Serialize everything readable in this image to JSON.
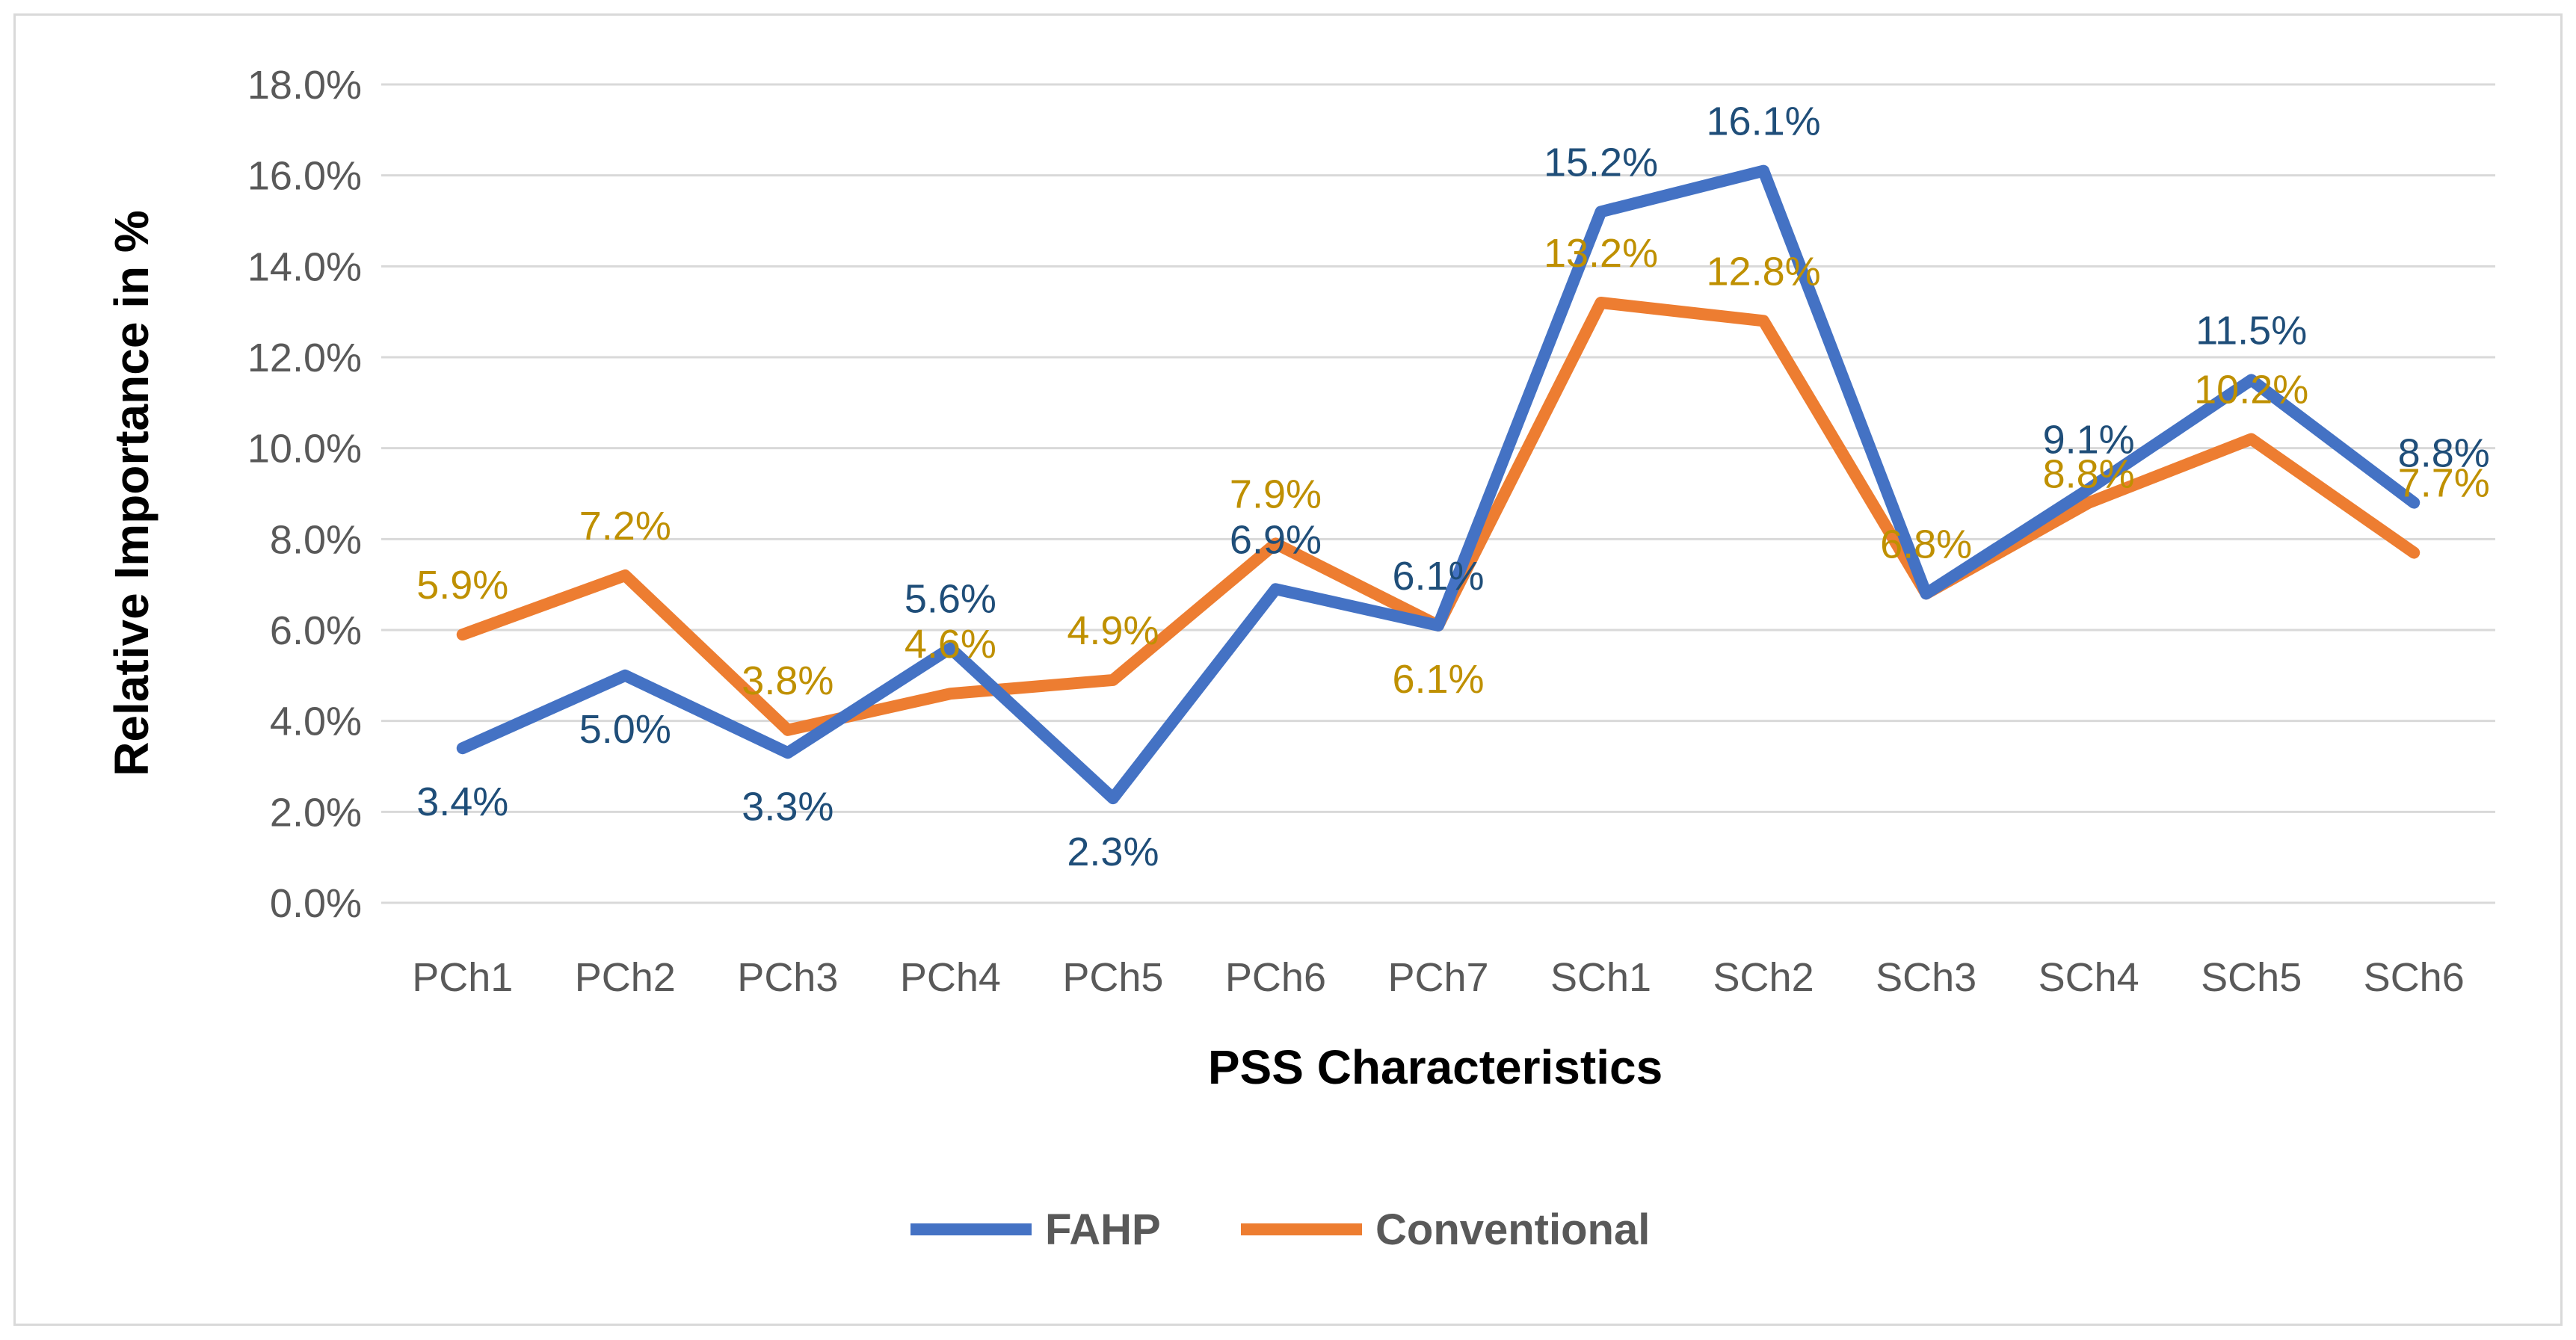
{
  "chart_data": {
    "type": "line",
    "categories": [
      "PCh1",
      "PCh2",
      "PCh3",
      "PCh4",
      "PCh5",
      "PCh6",
      "PCh7",
      "SCh1",
      "SCh2",
      "SCh3",
      "SCh4",
      "SCh5",
      "SCh6"
    ],
    "series": [
      {
        "name": "FAHP",
        "color": "#4472c4",
        "label_color": "#1f4e79",
        "values": [
          3.4,
          5.0,
          3.3,
          5.6,
          2.3,
          6.9,
          6.1,
          15.2,
          16.1,
          6.8,
          9.1,
          11.5,
          8.8
        ],
        "labels": [
          "3.4%",
          "5.0%",
          "3.3%",
          "5.6%",
          "2.3%",
          "6.9%",
          "6.1%",
          "15.2%",
          "16.1%",
          "",
          "9.1%",
          "11.5%",
          "8.8%"
        ]
      },
      {
        "name": "Conventional",
        "color": "#ed7d31",
        "label_color": "#bf9000",
        "values": [
          5.9,
          7.2,
          3.8,
          4.6,
          4.9,
          7.9,
          6.1,
          13.2,
          12.8,
          6.8,
          8.8,
          10.2,
          7.7
        ],
        "labels": [
          "5.9%",
          "7.2%",
          "3.8%",
          "4.6%",
          "4.9%",
          "7.9%",
          "6.1%",
          "13.2%",
          "12.8%",
          "6.8%",
          "8.8%",
          "10.2%",
          "7.7%"
        ]
      }
    ],
    "y_ticks": [
      "0.0%",
      "2.0%",
      "4.0%",
      "6.0%",
      "8.0%",
      "10.0%",
      "12.0%",
      "14.0%",
      "16.0%",
      "18.0%"
    ],
    "ylim": [
      0,
      18
    ],
    "xlabel": "PSS Characteristics",
    "ylabel": "Relative Importance in %",
    "grid": true,
    "gridline_color": "#d9d9d9",
    "legend_position": "bottom"
  }
}
